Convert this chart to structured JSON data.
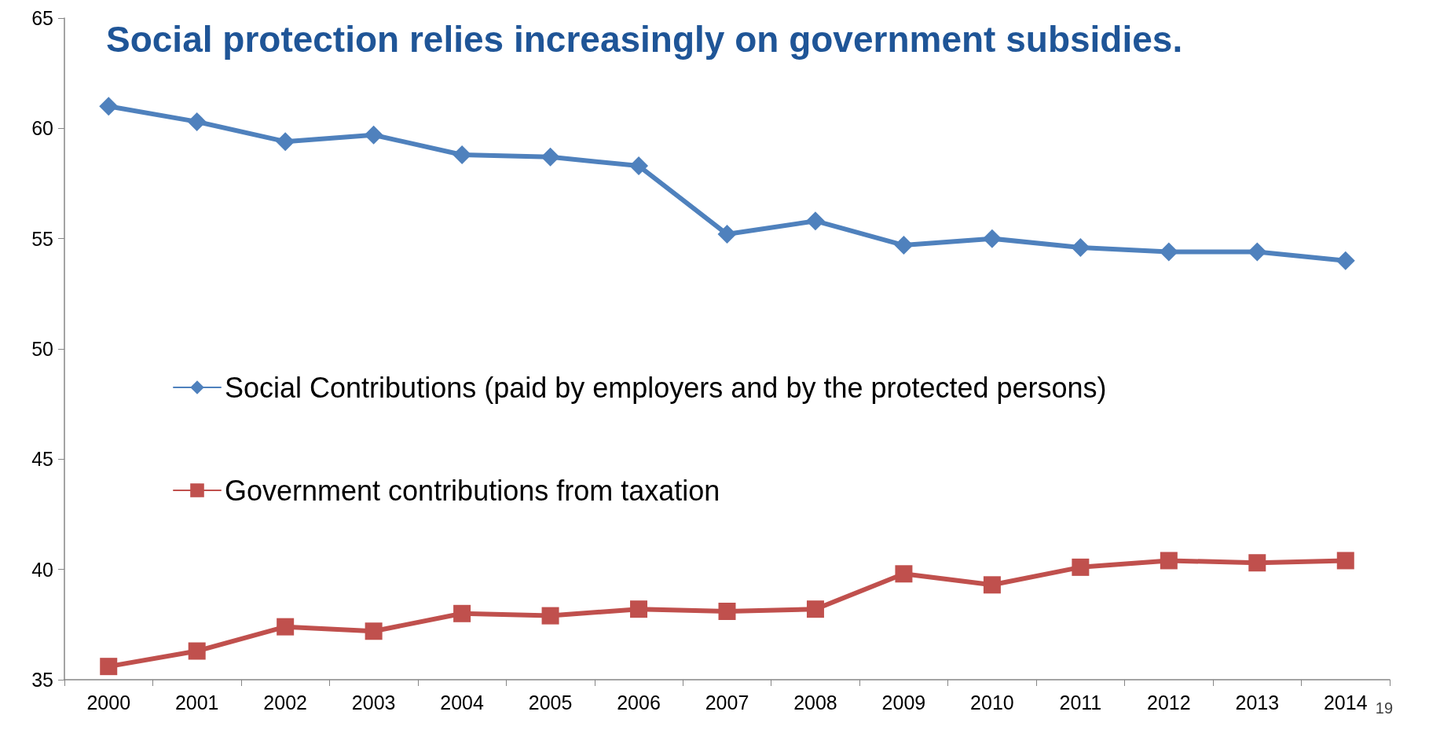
{
  "chart_data": {
    "type": "line",
    "title": "Social protection relies increasingly on government subsidies.",
    "categories": [
      "2000",
      "2001",
      "2002",
      "2003",
      "2004",
      "2005",
      "2006",
      "2007",
      "2008",
      "2009",
      "2010",
      "2011",
      "2012",
      "2013",
      "2014"
    ],
    "series": [
      {
        "name": "Social Contributions (paid by employers and by the protected persons)",
        "color": "#4f81bd",
        "marker": "diamond",
        "values": [
          61.0,
          60.3,
          59.4,
          59.7,
          58.8,
          58.7,
          58.3,
          55.2,
          55.8,
          54.7,
          55.0,
          54.6,
          54.4,
          54.4,
          54.0
        ]
      },
      {
        "name": "Government contributions from taxation",
        "color": "#c0504d",
        "marker": "square",
        "values": [
          35.6,
          36.3,
          37.4,
          37.2,
          38.0,
          37.9,
          38.2,
          38.1,
          38.2,
          39.8,
          39.3,
          40.1,
          40.4,
          40.3,
          40.4
        ]
      }
    ],
    "ylim": [
      35,
      65
    ],
    "yticks": [
      35,
      40,
      45,
      50,
      55,
      60,
      65
    ],
    "grid": false,
    "legend": "left",
    "annotations": [
      "19"
    ]
  }
}
